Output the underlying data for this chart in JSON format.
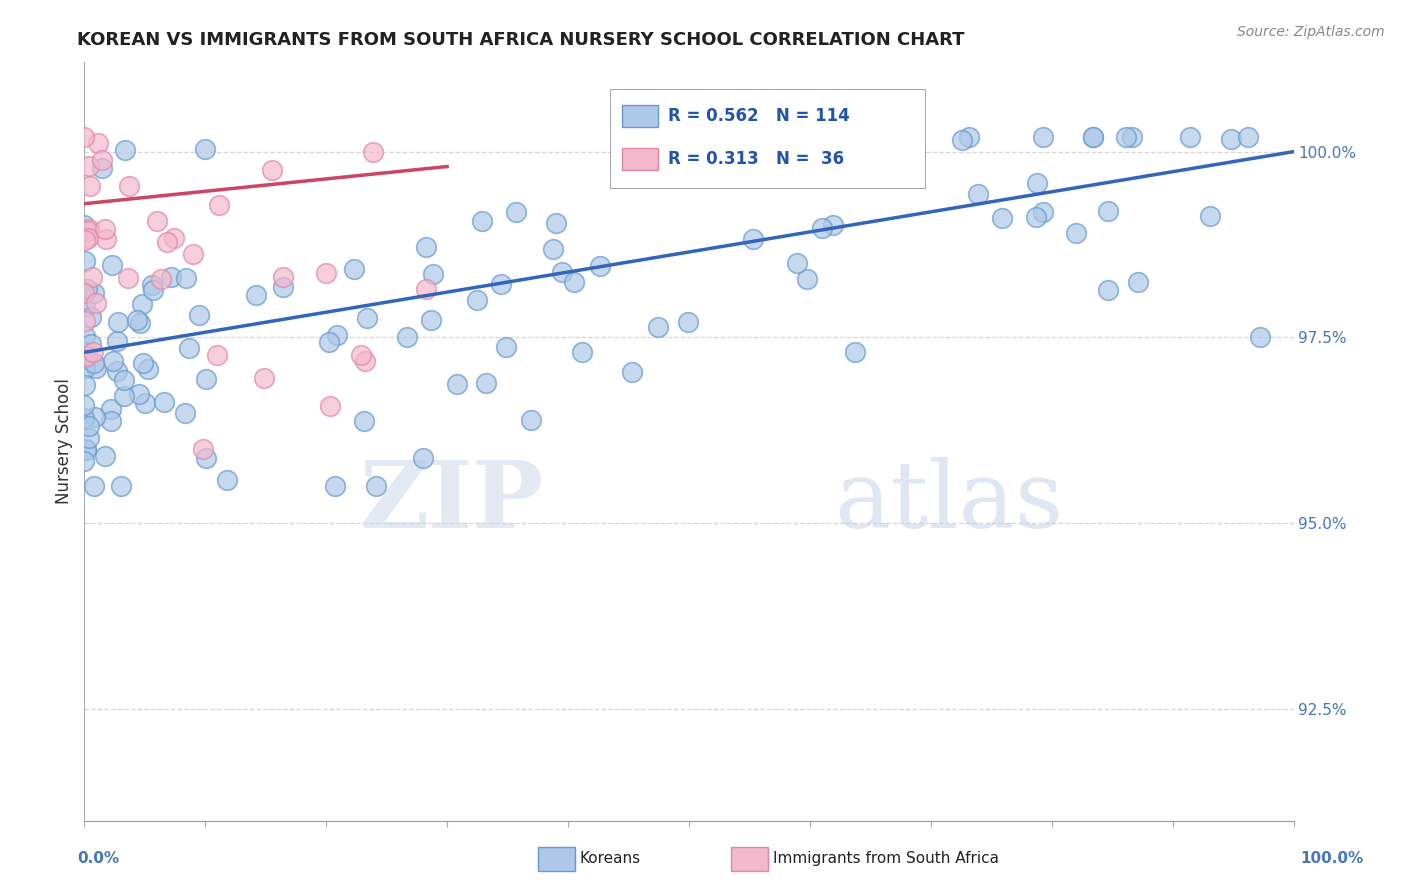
{
  "title": "KOREAN VS IMMIGRANTS FROM SOUTH AFRICA NURSERY SCHOOL CORRELATION CHART",
  "source": "Source: ZipAtlas.com",
  "ylabel": "Nursery School",
  "watermark_zip": "ZIP",
  "watermark_atlas": "atlas",
  "color_korean": "#adc8e8",
  "color_sa": "#f2b8cc",
  "color_korean_edge": "#6699cc",
  "color_sa_edge": "#dd88aa",
  "color_korean_line": "#3366bb",
  "color_sa_line": "#cc4466",
  "background": "#ffffff",
  "grid_color": "#cccccc",
  "xlim": [
    0,
    100
  ],
  "ylim": [
    91.0,
    101.2
  ],
  "ytick_positions": [
    100.0,
    97.5,
    95.0,
    92.5
  ],
  "ytick_labels": [
    "100.0%",
    "97.5%",
    "95.0%",
    "92.5%"
  ],
  "legend_r1": "R = 0.562",
  "legend_n1": "N = 114",
  "legend_r2": "R = 0.313",
  "legend_n2": "N =  36",
  "title_fontsize": 13,
  "source_fontsize": 10,
  "ytick_fontsize": 11,
  "legend_fontsize": 12
}
